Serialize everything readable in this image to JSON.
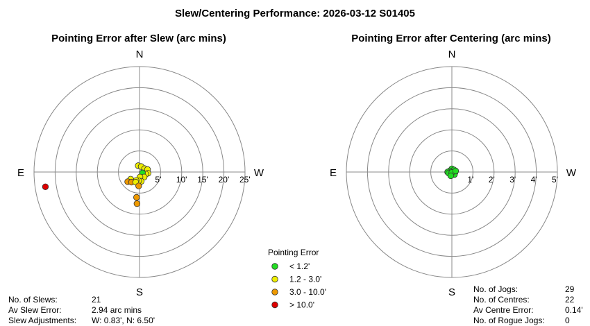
{
  "title": "Slew/Centering Performance: 2026-03-12 S01405",
  "chart_data": [
    {
      "type": "scatter",
      "title": "Pointing Error after Slew (arc mins)",
      "coordinates": "polar",
      "directions": {
        "north": "N",
        "south": "S",
        "east": "E",
        "west": "W"
      },
      "rings": [
        5,
        10,
        15,
        20,
        25
      ],
      "ring_labels": [
        "5'",
        "10'",
        "15'",
        "20'",
        "25'"
      ],
      "rmax": 25,
      "points_note": "x = arc mins toward W (+) / E (-), y = arc mins toward N (+) / S (-)",
      "points": [
        {
          "x": -0.3,
          "y": 1.5
        },
        {
          "x": 0.4,
          "y": 1.3
        },
        {
          "x": 1.2,
          "y": 0.8
        },
        {
          "x": 1.9,
          "y": 0.6
        },
        {
          "x": 2.0,
          "y": -0.3
        },
        {
          "x": 1.5,
          "y": -0.5
        },
        {
          "x": 0.7,
          "y": -0.2
        },
        {
          "x": 1.1,
          "y": -1.2
        },
        {
          "x": 0.1,
          "y": -1.2
        },
        {
          "x": 0.4,
          "y": -2.2
        },
        {
          "x": -0.2,
          "y": -2.1
        },
        {
          "x": -0.8,
          "y": -2.0
        },
        {
          "x": -2.1,
          "y": -1.7
        },
        {
          "x": -2.8,
          "y": -2.3
        },
        {
          "x": -1.9,
          "y": -2.4
        },
        {
          "x": -0.9,
          "y": -2.4
        },
        {
          "x": -0.2,
          "y": -3.3
        },
        {
          "x": -0.7,
          "y": -6.0
        },
        {
          "x": -0.6,
          "y": -7.5
        },
        {
          "x": -22.3,
          "y": -3.5
        }
      ],
      "stats": [
        {
          "label": "No. of Slews:",
          "value": "21"
        },
        {
          "label": "Av Slew Error:",
          "value": "2.94 arc mins"
        },
        {
          "label": "Slew Adjustments:",
          "value": "W: 0.83', N: 6.50'"
        }
      ]
    },
    {
      "type": "scatter",
      "title": "Pointing Error after Centering (arc mins)",
      "coordinates": "polar",
      "directions": {
        "north": "N",
        "south": "S",
        "east": "E",
        "west": "W"
      },
      "rings": [
        1,
        2,
        3,
        4,
        5
      ],
      "ring_labels": [
        "1'",
        "2'",
        "3'",
        "4'",
        "5'"
      ],
      "rmax": 5,
      "points": [
        {
          "x": 0.0,
          "y": 0.15
        },
        {
          "x": 0.1,
          "y": 0.1
        },
        {
          "x": -0.1,
          "y": 0.05
        },
        {
          "x": -0.2,
          "y": 0.0
        },
        {
          "x": 0.15,
          "y": -0.02
        },
        {
          "x": 0.05,
          "y": -0.08
        },
        {
          "x": -0.08,
          "y": -0.1
        },
        {
          "x": -0.15,
          "y": -0.05
        },
        {
          "x": 0.12,
          "y": -0.12
        },
        {
          "x": 0.0,
          "y": -0.02
        },
        {
          "x": 0.18,
          "y": 0.05
        },
        {
          "x": -0.05,
          "y": -0.18
        }
      ],
      "stats": [
        {
          "label": "No. of Jogs:",
          "value": "29"
        },
        {
          "label": "No. of Centres:",
          "value": "22"
        },
        {
          "label": "Av Centre Error:",
          "value": "0.14'"
        },
        {
          "label": "No. of Rogue Jogs:",
          "value": "0"
        }
      ]
    }
  ],
  "legend": {
    "title": "Pointing Error",
    "items": [
      {
        "label": "< 1.2'",
        "color": "#22dd22",
        "max": 1.2
      },
      {
        "label": "1.2 - 3.0'",
        "color": "#eeee00",
        "max": 3.0
      },
      {
        "label": "3.0 - 10.0'",
        "color": "#ee9900",
        "max": 10.0
      },
      {
        "label": "> 10.0'",
        "color": "#dd0000",
        "max": null
      }
    ]
  },
  "colors": {
    "ring": "#888888",
    "axis": "#888888",
    "marker_edge": "#333333"
  }
}
